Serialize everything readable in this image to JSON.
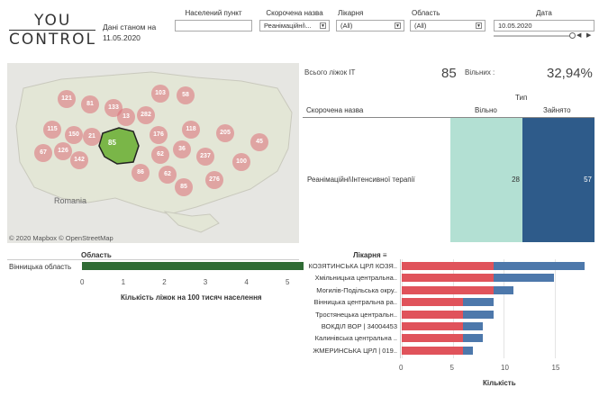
{
  "header": {
    "logo_line1": "YOU",
    "logo_line2": "CONTROL",
    "as_of": "Дані станом на 11.05.2020"
  },
  "filters": {
    "settlement": {
      "label": "Населений пункт",
      "value": ""
    },
    "short_name": {
      "label": "Скорочена назва",
      "value": "Реанімаційні\\..."
    },
    "hospital": {
      "label": "Лікарня",
      "value": "(All)"
    },
    "region": {
      "label": "Область",
      "value": "(All)"
    },
    "date": {
      "label": "Дата",
      "value": "10.05.2020"
    }
  },
  "map": {
    "attribution": "© 2020 Mapbox © OpenStreetMap",
    "country_label": "Romania",
    "selected_value": "85",
    "bubbles": [
      "121",
      "81",
      "133",
      "103",
      "58",
      "115",
      "150",
      "13",
      "282",
      "176",
      "21",
      "118",
      "205",
      "36",
      "126",
      "142",
      "67",
      "62",
      "45",
      "237",
      "100",
      "86",
      "62",
      "276",
      "85"
    ],
    "colors": {
      "selected_region": "#7ab648",
      "bubble": "#dc6e78",
      "land": "#e6e6e2"
    }
  },
  "kpi": {
    "total_label": "Всього ліжок ІТ",
    "total_value": "85",
    "free_label": "Вільних :",
    "free_value": "32,94%"
  },
  "table": {
    "type_header": "Тип",
    "col_name": "Скорочена назва",
    "col_free": "Вільно",
    "col_taken": "Зайнято",
    "row_name": "Реанімаційні\\Інтенсивної терапії",
    "free_value": "28",
    "taken_value": "57",
    "colors": {
      "free": "#b3e0d3",
      "taken": "#2e5b8a"
    }
  },
  "region_chart": {
    "header": "Область",
    "axis_title": "Кількість ліжок на 100 тисяч населення",
    "ticks": [
      "0",
      "1",
      "2",
      "3",
      "4",
      "5"
    ]
  },
  "hospital_chart": {
    "header": "Лікарня",
    "axis_title": "Кількість",
    "ticks": [
      "0",
      "5",
      "10",
      "15"
    ]
  },
  "chart_data": [
    {
      "type": "bar",
      "orientation": "horizontal",
      "categories": [
        "Вінницька область"
      ],
      "values": [
        5.4
      ],
      "xlabel": "Кількість ліжок на 100 тисяч населення",
      "xlim": [
        0,
        5.5
      ],
      "color": "#2f6b34"
    },
    {
      "type": "bar",
      "orientation": "horizontal",
      "stacked": true,
      "categories": [
        "КОЗЯТИНСЬКА ЦРЛ КОЗЯ..",
        "Хмільницька центральна..",
        "Могилів-Подільська окру..",
        "Вінницька центральна ра..",
        "Тростянецька центральн..",
        "ВОКДІЛ ВОР | 34004453",
        "Калинівська центральна ..",
        "ЖМЕРИНСЬКА ЦРЛ | 019.."
      ],
      "series": [
        {
          "name": "Зайнято",
          "color": "#e0535b",
          "values": [
            9,
            9,
            9,
            6,
            6,
            6,
            6,
            6
          ]
        },
        {
          "name": "Вільно",
          "color": "#4d78ab",
          "values": [
            9,
            6,
            2,
            3,
            3,
            2,
            2,
            1
          ]
        }
      ],
      "xlabel": "Кількість",
      "xlim": [
        0,
        18
      ]
    }
  ]
}
